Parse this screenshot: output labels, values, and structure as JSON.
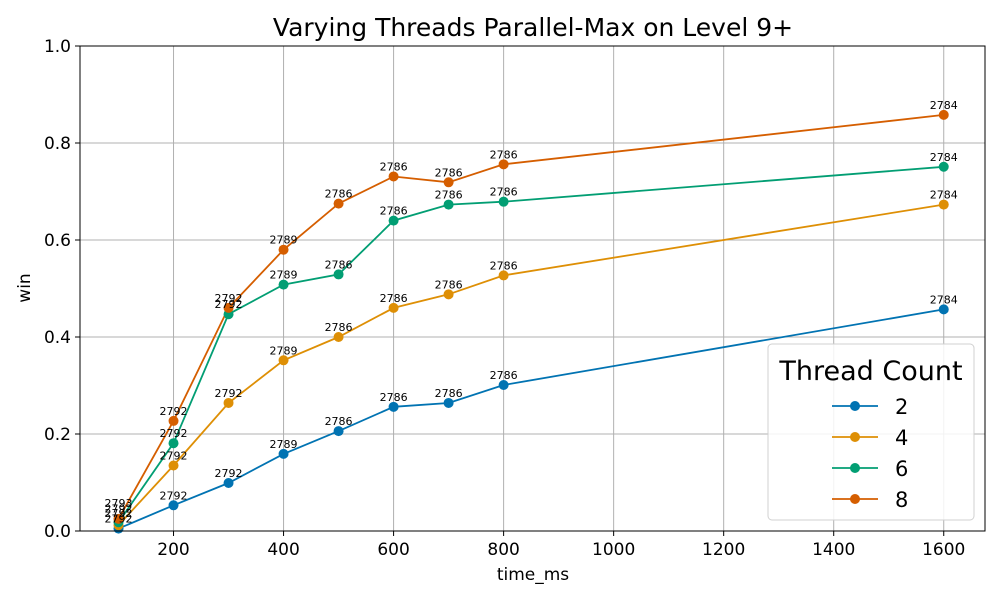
{
  "chart_data": {
    "type": "line",
    "title": "Varying Threads Parallel-Max on Level 9+",
    "xlabel": "time_ms",
    "ylabel": "win",
    "xlim": [
      30,
      1675
    ],
    "ylim": [
      0.0,
      1.0
    ],
    "xticks": [
      200,
      400,
      600,
      800,
      1000,
      1200,
      1400,
      1600
    ],
    "yticks": [
      0.0,
      0.2,
      0.4,
      0.6,
      0.8,
      1.0
    ],
    "grid": true,
    "legend": {
      "title": "Thread Count",
      "placement": "lower-right"
    },
    "series": [
      {
        "name": "2",
        "color": "#0173b2",
        "x": [
          100,
          200,
          300,
          400,
          500,
          600,
          700,
          800,
          1600
        ],
        "y": [
          0.005,
          0.053,
          0.099,
          0.159,
          0.206,
          0.256,
          0.264,
          0.301,
          0.457
        ],
        "labels": [
          "2792",
          "2792",
          "2792",
          "2789",
          "2786",
          "2786",
          "2786",
          "2786",
          "2784"
        ]
      },
      {
        "name": "4",
        "color": "#de8f05",
        "x": [
          100,
          200,
          300,
          400,
          500,
          600,
          700,
          800,
          1600
        ],
        "y": [
          0.012,
          0.135,
          0.264,
          0.352,
          0.4,
          0.46,
          0.488,
          0.527,
          0.673
        ],
        "labels": [
          "2792",
          "2792",
          "2792",
          "2789",
          "2786",
          "2786",
          "2786",
          "2786",
          "2784"
        ]
      },
      {
        "name": "6",
        "color": "#029e73",
        "x": [
          100,
          200,
          300,
          400,
          500,
          600,
          700,
          800,
          1600
        ],
        "y": [
          0.018,
          0.181,
          0.447,
          0.508,
          0.529,
          0.64,
          0.673,
          0.679,
          0.751
        ],
        "labels": [
          "2792",
          "2792",
          "2792",
          "2789",
          "2786",
          "2786",
          "2786",
          "2786",
          "2784"
        ]
      },
      {
        "name": "8",
        "color": "#d55e00",
        "x": [
          100,
          200,
          300,
          400,
          500,
          600,
          700,
          800,
          1600
        ],
        "y": [
          0.025,
          0.227,
          0.46,
          0.58,
          0.675,
          0.731,
          0.719,
          0.756,
          0.858
        ],
        "labels": [
          "2793",
          "2792",
          "2792",
          "2789",
          "2786",
          "2786",
          "2786",
          "2786",
          "2784"
        ]
      }
    ]
  }
}
